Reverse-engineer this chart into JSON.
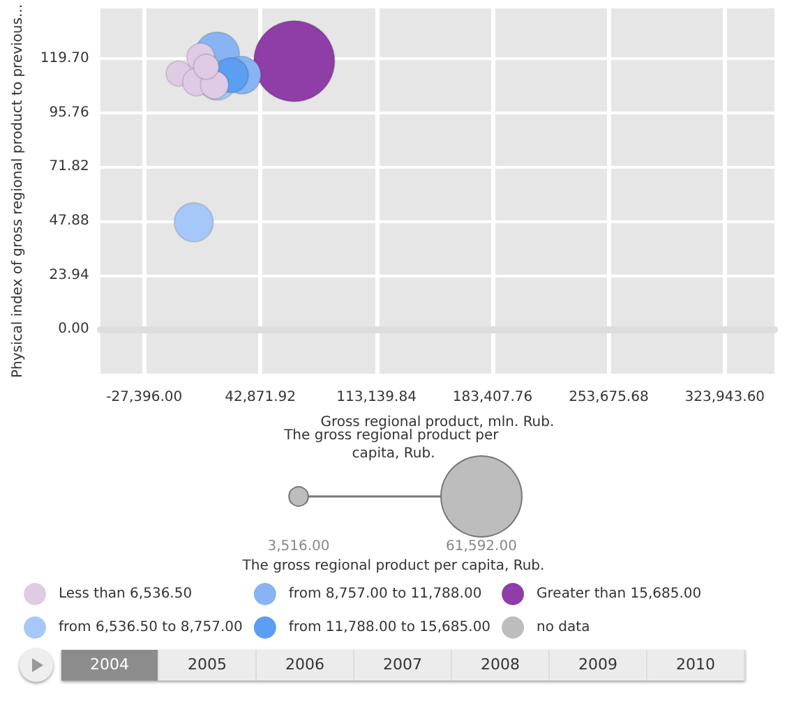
{
  "chart_data": {
    "type": "bubble",
    "xlabel": "Gross regional product, mln. Rub.",
    "ylabel": "Physical index of gross regional product to previous...",
    "legend_title": "The gross regional product per capita, Rub.",
    "xlim": [
      -54000,
      354000
    ],
    "ylim": [
      -19.6,
      141.8
    ],
    "xticks": [
      {
        "value": -27396,
        "label": "-27,396.00"
      },
      {
        "value": 42871.92,
        "label": "42,871.92"
      },
      {
        "value": 113139.84,
        "label": "113,139.84"
      },
      {
        "value": 183407.76,
        "label": "183,407.76"
      },
      {
        "value": 253675.68,
        "label": "253,675.68"
      },
      {
        "value": 323943.6,
        "label": "323,943.60"
      }
    ],
    "yticks": [
      {
        "value": 0,
        "label": "0.00"
      },
      {
        "value": 23.94,
        "label": "23.94"
      },
      {
        "value": 47.88,
        "label": "47.88"
      },
      {
        "value": 71.82,
        "label": "71.82"
      },
      {
        "value": 95.76,
        "label": "95.76"
      },
      {
        "value": 119.7,
        "label": "119.70"
      }
    ],
    "size_legend": [
      {
        "value": 3516,
        "label": "3,516.00"
      },
      {
        "value": 61592,
        "label": "61,592.00"
      }
    ],
    "grid": true,
    "legend": "bottom",
    "series": [
      {
        "name": "Less than 6,536.50",
        "color": "#dfcbe3",
        "x": [
          -6581,
          6741,
          4243,
          15067,
          10072
        ],
        "values": [
          113,
          120.3,
          109.3,
          108,
          116
        ],
        "sizes": [
          5930,
          7320,
          7320,
          7320,
          5930
        ]
      },
      {
        "name": "from 6,536.50 to 8,757.00",
        "color": "#a6c8f8",
        "x": [
          2578,
          16734
        ],
        "values": [
          47.3,
          109.9
        ],
        "sizes": [
          14350,
          14350
        ]
      },
      {
        "name": "from 8,757.00 to 11,788.00",
        "color": "#88b4f4",
        "x": [
          16734,
          31720
        ],
        "values": [
          121.5,
          112.3
        ],
        "sizes": [
          18750,
          13350
        ]
      },
      {
        "name": "from 11,788.00 to 15,685.00",
        "color": "#5b9ef2",
        "x": [
          25060
        ],
        "values": [
          112.3
        ],
        "sizes": [
          11440
        ]
      },
      {
        "name": "Greater than 15,685.00",
        "color": "#8e3ea6",
        "x": [
          63360
        ],
        "values": [
          118.5
        ],
        "sizes": [
          61592
        ]
      },
      {
        "name": "no data",
        "color": "#bdbdbd"
      }
    ],
    "annotations": [
      "The gross regional product per capita, Rub.",
      "2004",
      "2005",
      "2006",
      "2007",
      "2008",
      "2009",
      "2010"
    ]
  }
}
